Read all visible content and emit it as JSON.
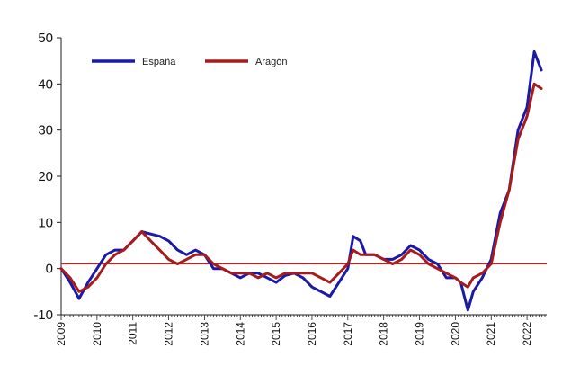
{
  "chart_data": {
    "type": "line",
    "title": "",
    "xlabel": "",
    "ylabel": "",
    "ylim": [
      -10,
      50
    ],
    "yticks": [
      -10,
      0,
      10,
      20,
      30,
      40,
      50
    ],
    "xticks": [
      "2009",
      "2010",
      "2011",
      "2012",
      "2013",
      "2014",
      "2015",
      "2016",
      "2017",
      "2018",
      "2019",
      "2020",
      "2021",
      "2022"
    ],
    "grid": false,
    "legend_position": "top-left",
    "reference_line": {
      "y": 1,
      "color": "#ee1111"
    },
    "series": [
      {
        "name": "España",
        "color": "#1a1aa6",
        "points": [
          [
            2009.0,
            0
          ],
          [
            2009.25,
            -3
          ],
          [
            2009.5,
            -6.5
          ],
          [
            2009.75,
            -3
          ],
          [
            2010.0,
            0
          ],
          [
            2010.25,
            3
          ],
          [
            2010.5,
            4
          ],
          [
            2010.75,
            4
          ],
          [
            2011.0,
            6
          ],
          [
            2011.25,
            8
          ],
          [
            2011.5,
            7.5
          ],
          [
            2011.75,
            7
          ],
          [
            2012.0,
            6
          ],
          [
            2012.25,
            4
          ],
          [
            2012.5,
            3
          ],
          [
            2012.75,
            4
          ],
          [
            2013.0,
            3
          ],
          [
            2013.25,
            0
          ],
          [
            2013.5,
            0
          ],
          [
            2013.75,
            -1
          ],
          [
            2014.0,
            -2
          ],
          [
            2014.25,
            -1
          ],
          [
            2014.5,
            -1
          ],
          [
            2014.75,
            -2
          ],
          [
            2015.0,
            -3
          ],
          [
            2015.25,
            -1.5
          ],
          [
            2015.5,
            -1
          ],
          [
            2015.75,
            -2
          ],
          [
            2016.0,
            -4
          ],
          [
            2016.25,
            -5
          ],
          [
            2016.5,
            -6
          ],
          [
            2016.75,
            -3
          ],
          [
            2017.0,
            0
          ],
          [
            2017.15,
            7
          ],
          [
            2017.35,
            6
          ],
          [
            2017.5,
            3
          ],
          [
            2017.75,
            3
          ],
          [
            2018.0,
            2
          ],
          [
            2018.25,
            2
          ],
          [
            2018.5,
            3
          ],
          [
            2018.75,
            5
          ],
          [
            2019.0,
            4
          ],
          [
            2019.25,
            2
          ],
          [
            2019.5,
            1
          ],
          [
            2019.75,
            -2
          ],
          [
            2020.0,
            -2
          ],
          [
            2020.15,
            -3
          ],
          [
            2020.35,
            -9
          ],
          [
            2020.5,
            -5
          ],
          [
            2020.75,
            -2
          ],
          [
            2021.0,
            2
          ],
          [
            2021.25,
            12
          ],
          [
            2021.5,
            17
          ],
          [
            2021.75,
            30
          ],
          [
            2022.0,
            35
          ],
          [
            2022.2,
            47
          ],
          [
            2022.4,
            43
          ]
        ]
      },
      {
        "name": "Aragón",
        "color": "#a61c1c",
        "points": [
          [
            2009.0,
            0
          ],
          [
            2009.25,
            -2
          ],
          [
            2009.5,
            -5
          ],
          [
            2009.75,
            -4
          ],
          [
            2010.0,
            -2
          ],
          [
            2010.25,
            1
          ],
          [
            2010.5,
            3
          ],
          [
            2010.75,
            4
          ],
          [
            2011.0,
            6
          ],
          [
            2011.25,
            8
          ],
          [
            2011.5,
            6
          ],
          [
            2011.75,
            4
          ],
          [
            2012.0,
            2
          ],
          [
            2012.25,
            1
          ],
          [
            2012.5,
            2
          ],
          [
            2012.75,
            3
          ],
          [
            2013.0,
            3
          ],
          [
            2013.25,
            1
          ],
          [
            2013.5,
            0
          ],
          [
            2013.75,
            -1
          ],
          [
            2014.0,
            -1
          ],
          [
            2014.25,
            -1
          ],
          [
            2014.5,
            -2
          ],
          [
            2014.75,
            -1
          ],
          [
            2015.0,
            -2
          ],
          [
            2015.25,
            -1
          ],
          [
            2015.5,
            -1
          ],
          [
            2015.75,
            -1
          ],
          [
            2016.0,
            -1
          ],
          [
            2016.25,
            -2
          ],
          [
            2016.5,
            -3
          ],
          [
            2016.75,
            -1
          ],
          [
            2017.0,
            1
          ],
          [
            2017.15,
            4
          ],
          [
            2017.35,
            3
          ],
          [
            2017.5,
            3
          ],
          [
            2017.75,
            3
          ],
          [
            2018.0,
            2
          ],
          [
            2018.25,
            1
          ],
          [
            2018.5,
            2
          ],
          [
            2018.75,
            4
          ],
          [
            2019.0,
            3
          ],
          [
            2019.25,
            1
          ],
          [
            2019.5,
            0
          ],
          [
            2019.75,
            -1
          ],
          [
            2020.0,
            -2
          ],
          [
            2020.15,
            -3
          ],
          [
            2020.35,
            -4
          ],
          [
            2020.5,
            -2
          ],
          [
            2020.75,
            -1
          ],
          [
            2021.0,
            1
          ],
          [
            2021.25,
            10
          ],
          [
            2021.5,
            17
          ],
          [
            2021.75,
            28
          ],
          [
            2022.0,
            33
          ],
          [
            2022.2,
            40
          ],
          [
            2022.4,
            39
          ]
        ]
      }
    ]
  }
}
